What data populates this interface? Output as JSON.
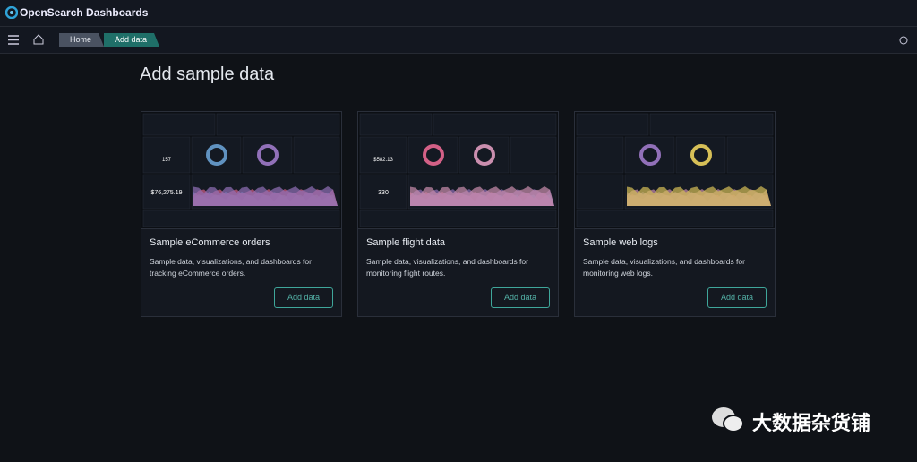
{
  "header": {
    "brand": "OpenSearch Dashboards"
  },
  "breadcrumbs": [
    "Home",
    "Add data"
  ],
  "page_title": "Add sample data",
  "cards": [
    {
      "title": "Sample eCommerce orders",
      "description": "Sample data, visualizations, and dashboards for tracking eCommerce orders.",
      "button": "Add data",
      "thumbnail_texts": [
        "$76,275.19",
        "157"
      ]
    },
    {
      "title": "Sample flight data",
      "description": "Sample data, visualizations, and dashboards for monitoring flight routes.",
      "button": "Add data",
      "thumbnail_texts": [
        "330",
        "$582.13"
      ]
    },
    {
      "title": "Sample web logs",
      "description": "Sample data, visualizations, and dashboards for monitoring web logs.",
      "button": "Add data"
    }
  ],
  "watermark": "大数据杂货铺"
}
